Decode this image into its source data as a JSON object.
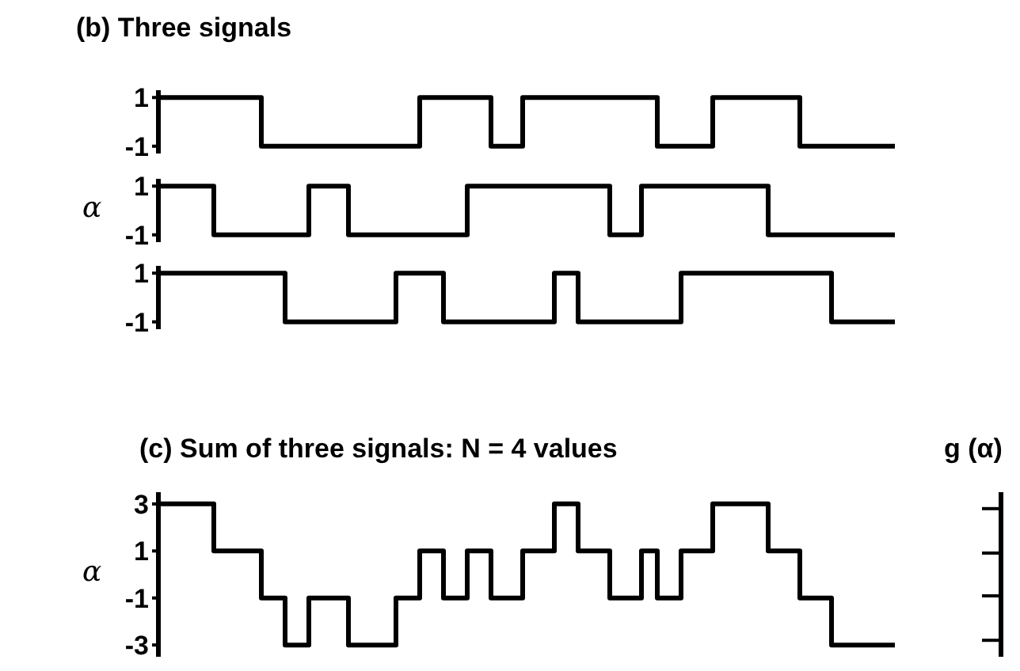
{
  "chart_data": [
    {
      "type": "step",
      "title": "(b) Three signals",
      "categories": [
        null,
        null,
        null,
        null,
        null,
        null,
        null,
        null,
        null,
        null,
        null,
        null,
        null,
        null,
        null,
        null,
        null,
        null,
        null,
        null,
        null,
        null,
        null,
        null,
        null,
        null,
        null,
        null,
        null,
        null,
        null,
        null,
        null,
        null,
        null,
        null,
        null,
        null,
        null,
        null,
        null,
        null,
        null,
        null,
        null,
        null,
        null,
        null,
        null,
        null,
        null,
        null,
        null,
        null,
        null,
        null,
        null,
        null,
        null,
        null,
        null,
        null,
        null,
        null,
        null,
        null,
        null,
        null,
        null,
        null,
        null,
        null,
        null,
        null,
        null,
        null,
        null,
        null,
        null,
        null,
        null,
        null,
        null,
        null,
        null,
        null,
        null,
        null,
        null,
        null,
        null,
        null,
        null,
        null
      ],
      "series": [
        {
          "color": "#000000",
          "values": [
            1,
            1,
            1,
            1,
            1,
            1,
            1,
            1,
            1,
            1,
            1,
            1,
            1,
            -1,
            -1,
            -1,
            -1,
            -1,
            -1,
            -1,
            -1,
            -1,
            -1,
            -1,
            -1,
            -1,
            -1,
            -1,
            -1,
            -1,
            -1,
            -1,
            -1,
            1,
            1,
            1,
            1,
            1,
            1,
            1,
            1,
            1,
            -1,
            -1,
            -1,
            -1,
            1,
            1,
            1,
            1,
            1,
            1,
            1,
            1,
            1,
            1,
            1,
            1,
            1,
            1,
            1,
            1,
            1,
            -1,
            -1,
            -1,
            -1,
            -1,
            -1,
            -1,
            1,
            1,
            1,
            1,
            1,
            1,
            1,
            1,
            1,
            1,
            1,
            -1,
            -1,
            -1,
            -1,
            -1,
            -1,
            -1,
            -1,
            -1,
            -1,
            -1,
            -1,
            -1
          ]
        }
      ],
      "ylim": [
        -1.3,
        1.3
      ],
      "yticks": [
        1,
        -1
      ],
      "tick_labels": "y",
      "marker": "none",
      "line_style": "solid"
    },
    {
      "type": "step",
      "ylabel": "α",
      "categories": [
        null,
        null,
        null,
        null,
        null,
        null,
        null,
        null,
        null,
        null,
        null,
        null,
        null,
        null,
        null,
        null,
        null,
        null,
        null,
        null,
        null,
        null,
        null,
        null,
        null,
        null,
        null,
        null,
        null,
        null,
        null,
        null,
        null,
        null,
        null,
        null,
        null,
        null,
        null,
        null,
        null,
        null,
        null,
        null,
        null,
        null,
        null,
        null,
        null,
        null,
        null,
        null,
        null,
        null,
        null,
        null,
        null,
        null,
        null,
        null,
        null,
        null,
        null,
        null,
        null,
        null,
        null,
        null,
        null,
        null,
        null,
        null,
        null,
        null,
        null,
        null,
        null,
        null,
        null,
        null,
        null,
        null,
        null,
        null,
        null,
        null,
        null,
        null,
        null,
        null,
        null,
        null,
        null,
        null
      ],
      "series": [
        {
          "color": "#000000",
          "values": [
            1,
            1,
            1,
            1,
            1,
            1,
            1,
            -1,
            -1,
            -1,
            -1,
            -1,
            -1,
            -1,
            -1,
            -1,
            -1,
            -1,
            -1,
            1,
            1,
            1,
            1,
            1,
            -1,
            -1,
            -1,
            -1,
            -1,
            -1,
            -1,
            -1,
            -1,
            -1,
            -1,
            -1,
            -1,
            -1,
            -1,
            1,
            1,
            1,
            1,
            1,
            1,
            1,
            1,
            1,
            1,
            1,
            1,
            1,
            1,
            1,
            1,
            1,
            1,
            -1,
            -1,
            -1,
            -1,
            1,
            1,
            1,
            1,
            1,
            1,
            1,
            1,
            1,
            1,
            1,
            1,
            1,
            1,
            1,
            1,
            -1,
            -1,
            -1,
            -1,
            -1,
            -1,
            -1,
            -1,
            -1,
            -1,
            -1,
            -1,
            -1,
            -1,
            -1,
            -1,
            -1
          ]
        }
      ],
      "ylim": [
        -1.3,
        1.3
      ],
      "yticks": [
        1,
        -1
      ],
      "tick_labels": "y",
      "marker": "none",
      "line_style": "solid"
    },
    {
      "type": "step",
      "categories": [
        null,
        null,
        null,
        null,
        null,
        null,
        null,
        null,
        null,
        null,
        null,
        null,
        null,
        null,
        null,
        null,
        null,
        null,
        null,
        null,
        null,
        null,
        null,
        null,
        null,
        null,
        null,
        null,
        null,
        null,
        null,
        null,
        null,
        null,
        null,
        null,
        null,
        null,
        null,
        null,
        null,
        null,
        null,
        null,
        null,
        null,
        null,
        null,
        null,
        null,
        null,
        null,
        null,
        null,
        null,
        null,
        null,
        null,
        null,
        null,
        null,
        null,
        null,
        null,
        null,
        null,
        null,
        null,
        null,
        null,
        null,
        null,
        null,
        null,
        null,
        null,
        null,
        null,
        null,
        null,
        null,
        null,
        null,
        null,
        null,
        null,
        null,
        null,
        null,
        null,
        null,
        null,
        null,
        null
      ],
      "series": [
        {
          "color": "#000000",
          "values": [
            1,
            1,
            1,
            1,
            1,
            1,
            1,
            1,
            1,
            1,
            1,
            1,
            1,
            1,
            1,
            1,
            -1,
            -1,
            -1,
            -1,
            -1,
            -1,
            -1,
            -1,
            -1,
            -1,
            -1,
            -1,
            -1,
            -1,
            1,
            1,
            1,
            1,
            1,
            1,
            -1,
            -1,
            -1,
            -1,
            -1,
            -1,
            -1,
            -1,
            -1,
            -1,
            -1,
            -1,
            -1,
            -1,
            1,
            1,
            1,
            -1,
            -1,
            -1,
            -1,
            -1,
            -1,
            -1,
            -1,
            -1,
            -1,
            -1,
            -1,
            -1,
            1,
            1,
            1,
            1,
            1,
            1,
            1,
            1,
            1,
            1,
            1,
            1,
            1,
            1,
            1,
            1,
            1,
            1,
            1,
            -1,
            -1,
            -1,
            -1,
            -1,
            -1,
            -1,
            -1,
            -1
          ]
        }
      ],
      "ylim": [
        -1.3,
        1.3
      ],
      "yticks": [
        1,
        -1
      ],
      "tick_labels": "y",
      "marker": "none",
      "line_style": "solid"
    },
    {
      "type": "step",
      "title": "(c) Sum of three signals: N = 4 values",
      "ylabel": "α",
      "categories": [
        null,
        null,
        null,
        null,
        null,
        null,
        null,
        null,
        null,
        null,
        null,
        null,
        null,
        null,
        null,
        null,
        null,
        null,
        null,
        null,
        null,
        null,
        null,
        null,
        null,
        null,
        null,
        null,
        null,
        null,
        null,
        null,
        null,
        null,
        null,
        null,
        null,
        null,
        null,
        null,
        null,
        null,
        null,
        null,
        null,
        null,
        null,
        null,
        null,
        null,
        null,
        null,
        null,
        null,
        null,
        null,
        null,
        null,
        null,
        null,
        null,
        null,
        null,
        null,
        null,
        null,
        null,
        null,
        null,
        null,
        null,
        null,
        null,
        null,
        null,
        null,
        null,
        null,
        null,
        null,
        null,
        null,
        null,
        null,
        null,
        null,
        null,
        null,
        null,
        null,
        null,
        null,
        null,
        null
      ],
      "series": [
        {
          "color": "#000000",
          "values": [
            3,
            3,
            3,
            3,
            3,
            3,
            3,
            1,
            1,
            1,
            1,
            1,
            1,
            -1,
            -1,
            -1,
            -3,
            -3,
            -3,
            -1,
            -1,
            -1,
            -1,
            -1,
            -3,
            -3,
            -3,
            -3,
            -3,
            -3,
            -1,
            -1,
            -1,
            1,
            1,
            1,
            -1,
            -1,
            -1,
            1,
            1,
            1,
            -1,
            -1,
            -1,
            -1,
            1,
            1,
            1,
            1,
            3,
            3,
            3,
            1,
            1,
            1,
            1,
            -1,
            -1,
            -1,
            -1,
            1,
            1,
            -1,
            -1,
            -1,
            1,
            1,
            1,
            1,
            3,
            3,
            3,
            3,
            3,
            3,
            3,
            1,
            1,
            1,
            1,
            -1,
            -1,
            -1,
            -1,
            -3,
            -3,
            -3,
            -3,
            -3,
            -3,
            -3,
            -3,
            -3
          ]
        }
      ],
      "ylim": [
        -3.5,
        3.5
      ],
      "yticks": [
        3,
        1,
        -1,
        -3
      ],
      "tick_labels": "y",
      "marker": "none",
      "line_style": "solid"
    },
    {
      "type": "other",
      "title": "g (α)"
    }
  ]
}
